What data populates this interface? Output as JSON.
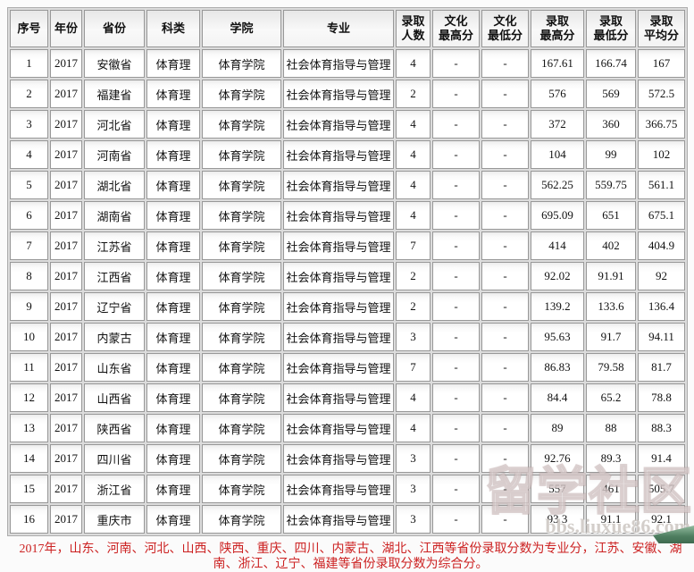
{
  "table": {
    "headers": [
      "序号",
      "年份",
      "省份",
      "科类",
      "学院",
      "专业",
      "录取\n人数",
      "文化\n最高分",
      "文化\n最低分",
      "录取\n最高分",
      "录取\n最低分",
      "录取\n平均分"
    ],
    "rows": [
      [
        "1",
        "2017",
        "安徽省",
        "体育理",
        "体育学院",
        "社会体育指导与管理",
        "4",
        "-",
        "-",
        "167.61",
        "166.74",
        "167"
      ],
      [
        "2",
        "2017",
        "福建省",
        "体育理",
        "体育学院",
        "社会体育指导与管理",
        "2",
        "-",
        "-",
        "576",
        "569",
        "572.5"
      ],
      [
        "3",
        "2017",
        "河北省",
        "体育理",
        "体育学院",
        "社会体育指导与管理",
        "4",
        "-",
        "-",
        "372",
        "360",
        "366.75"
      ],
      [
        "4",
        "2017",
        "河南省",
        "体育理",
        "体育学院",
        "社会体育指导与管理",
        "4",
        "-",
        "-",
        "104",
        "99",
        "102"
      ],
      [
        "5",
        "2017",
        "湖北省",
        "体育理",
        "体育学院",
        "社会体育指导与管理",
        "4",
        "-",
        "-",
        "562.25",
        "559.75",
        "561.1"
      ],
      [
        "6",
        "2017",
        "湖南省",
        "体育理",
        "体育学院",
        "社会体育指导与管理",
        "4",
        "-",
        "-",
        "695.09",
        "651",
        "675.1"
      ],
      [
        "7",
        "2017",
        "江苏省",
        "体育理",
        "体育学院",
        "社会体育指导与管理",
        "7",
        "-",
        "-",
        "414",
        "402",
        "404.9"
      ],
      [
        "8",
        "2017",
        "江西省",
        "体育理",
        "体育学院",
        "社会体育指导与管理",
        "2",
        "-",
        "-",
        "92.02",
        "91.91",
        "92"
      ],
      [
        "9",
        "2017",
        "辽宁省",
        "体育理",
        "体育学院",
        "社会体育指导与管理",
        "2",
        "-",
        "-",
        "139.2",
        "133.6",
        "136.4"
      ],
      [
        "10",
        "2017",
        "内蒙古",
        "体育理",
        "体育学院",
        "社会体育指导与管理",
        "3",
        "-",
        "-",
        "95.63",
        "91.7",
        "94.11"
      ],
      [
        "11",
        "2017",
        "山东省",
        "体育理",
        "体育学院",
        "社会体育指导与管理",
        "7",
        "-",
        "-",
        "86.83",
        "79.58",
        "81.7"
      ],
      [
        "12",
        "2017",
        "山西省",
        "体育理",
        "体育学院",
        "社会体育指导与管理",
        "4",
        "-",
        "-",
        "84.4",
        "65.2",
        "78.8"
      ],
      [
        "13",
        "2017",
        "陕西省",
        "体育理",
        "体育学院",
        "社会体育指导与管理",
        "4",
        "-",
        "-",
        "89",
        "88",
        "88.3"
      ],
      [
        "14",
        "2017",
        "四川省",
        "体育理",
        "体育学院",
        "社会体育指导与管理",
        "3",
        "-",
        "-",
        "92.76",
        "89.3",
        "91.4"
      ],
      [
        "15",
        "2017",
        "浙江省",
        "体育理",
        "体育学院",
        "社会体育指导与管理",
        "3",
        "-",
        "-",
        "557",
        "461",
        "505.7"
      ],
      [
        "16",
        "2017",
        "重庆市",
        "体育理",
        "体育学院",
        "社会体育指导与管理",
        "3",
        "-",
        "-",
        "93.3",
        "91.1",
        "92.1"
      ]
    ]
  },
  "footnote": {
    "text": "2017年，山东、河南、河北、山西、陕西、重庆、四川、内蒙古、湖北、江西等省份录取分数为专业分，江苏、安徽、湖南、浙江、辽宁、福建等省份录取分数为综合分。"
  },
  "watermark": {
    "title": "留学社区",
    "url": "bbs.liuxue86.com"
  },
  "colors": {
    "cell_border": "#989898",
    "footnote_red": "#cc2222",
    "corner_arrow_green": "#4e7e60"
  }
}
